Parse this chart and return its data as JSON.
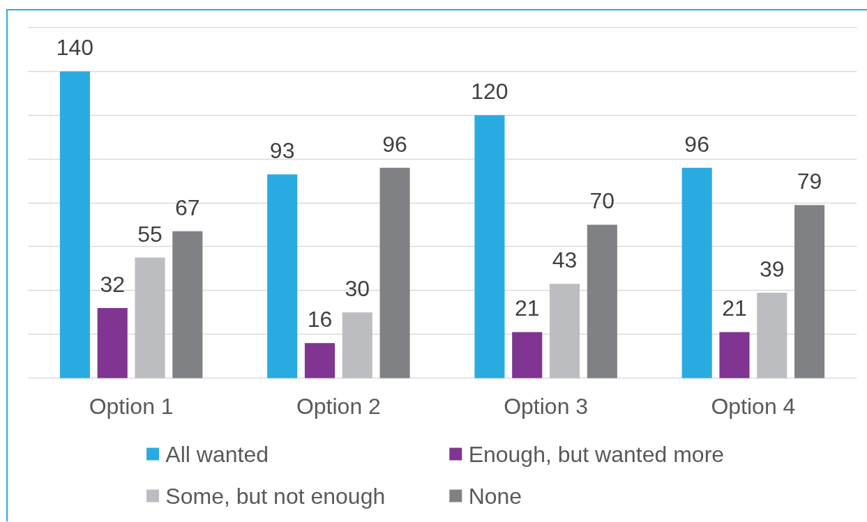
{
  "chart_data": {
    "type": "bar",
    "categories": [
      "Option 1",
      "Option 2",
      "Option 3",
      "Option 4"
    ],
    "series": [
      {
        "name": "All wanted",
        "color": "#29abe2",
        "values": [
          140,
          93,
          120,
          96
        ]
      },
      {
        "name": "Enough, but wanted more",
        "color": "#7f3591",
        "values": [
          32,
          16,
          21,
          21
        ]
      },
      {
        "name": "Some, but not enough",
        "color": "#bcbdc0",
        "values": [
          55,
          30,
          43,
          39
        ]
      },
      {
        "name": "None",
        "color": "#7f8184",
        "values": [
          67,
          96,
          70,
          79
        ]
      }
    ],
    "ylim": [
      0,
      160
    ],
    "yticks": [
      {
        "value": 0,
        "label": null
      },
      {
        "value": 20,
        "label": null
      },
      {
        "value": 40,
        "label": null
      },
      {
        "value": 60,
        "label": null
      },
      {
        "value": 80,
        "label": null
      },
      {
        "value": 100,
        "label": null
      },
      {
        "value": 120,
        "label": null
      },
      {
        "value": 140,
        "label": null
      },
      {
        "value": 160,
        "label": null
      }
    ],
    "tick_labels": "x",
    "grid": "y",
    "legend": "bottom",
    "data_labels": true
  }
}
